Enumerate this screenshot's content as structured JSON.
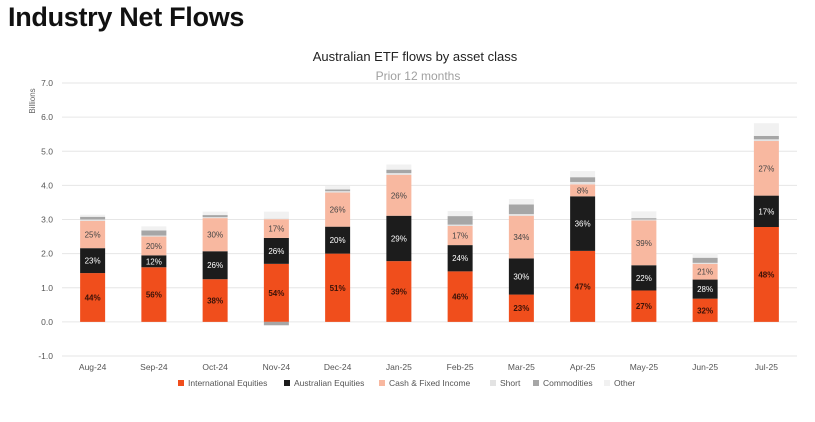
{
  "page": {
    "title": "Industry Net Flows"
  },
  "chart_data": {
    "type": "stacked bar",
    "title": "Australian ETF flows by asset class",
    "subtitle": "Prior 12 months",
    "ylabel": "Billions",
    "xlabel": "",
    "ylim": [
      -1.0,
      7.0
    ],
    "yticks": [
      "-1.0",
      "0.0",
      "1.0",
      "2.0",
      "3.0",
      "4.0",
      "5.0",
      "6.0",
      "7.0"
    ],
    "grid": true,
    "legend_position": "bottom",
    "categories": [
      "Aug-24",
      "Sep-24",
      "Oct-24",
      "Nov-24",
      "Dec-24",
      "Jan-25",
      "Feb-25",
      "Mar-25",
      "Apr-25",
      "May-25",
      "Jun-25",
      "Jul-25"
    ],
    "series": [
      {
        "name": "International Equities",
        "color": "#F04E1C",
        "label_color": "#3a1208",
        "values": [
          1.43,
          1.6,
          1.25,
          1.7,
          2.0,
          1.78,
          1.48,
          0.8,
          2.08,
          0.92,
          0.68,
          2.78
        ],
        "labels": [
          "44%",
          "56%",
          "38%",
          "54%",
          "51%",
          "39%",
          "46%",
          "23%",
          "47%",
          "27%",
          "32%",
          "48%"
        ]
      },
      {
        "name": "Australian Equities",
        "color": "#1C1C1C",
        "label_color": "#ffffff",
        "values": [
          0.73,
          0.35,
          0.82,
          0.76,
          0.79,
          1.33,
          0.77,
          1.06,
          1.6,
          0.74,
          0.56,
          0.92
        ],
        "labels": [
          "23%",
          "12%",
          "26%",
          "26%",
          "20%",
          "29%",
          "24%",
          "30%",
          "36%",
          "22%",
          "28%",
          "17%"
        ]
      },
      {
        "name": "Cash & Fixed Income",
        "color": "#F8B8A0",
        "label_color": "#444444",
        "values": [
          0.8,
          0.55,
          0.97,
          0.55,
          1.0,
          1.2,
          0.56,
          1.25,
          0.35,
          1.31,
          0.46,
          1.6
        ],
        "labels": [
          "25%",
          "20%",
          "30%",
          "17%",
          "26%",
          "26%",
          "17%",
          "34%",
          "8%",
          "39%",
          "21%",
          "27%"
        ]
      },
      {
        "name": "Short",
        "color": "#E3E3E3",
        "label_color": "#444444",
        "values": [
          0.04,
          0.03,
          0.03,
          0.02,
          0.04,
          0.05,
          0.04,
          0.05,
          0.07,
          0.03,
          0.03,
          0.05
        ],
        "labels": [
          "",
          "",
          "",
          "",
          "",
          "",
          "",
          "",
          "",
          "",
          "",
          ""
        ]
      },
      {
        "name": "Commodities",
        "color": "#A6A6A6",
        "label_color": "#444444",
        "values": [
          0.08,
          0.15,
          0.06,
          -0.1,
          0.05,
          0.1,
          0.25,
          0.28,
          0.14,
          0.04,
          0.15,
          0.1
        ],
        "labels": [
          "",
          "",
          "",
          "",
          "",
          "",
          "",
          "",
          "",
          "",
          "",
          ""
        ]
      },
      {
        "name": "Other",
        "color": "#F1F1F1",
        "label_color": "#444444",
        "values": [
          0.06,
          0.12,
          0.1,
          0.2,
          0.1,
          0.15,
          0.15,
          0.16,
          0.18,
          0.2,
          0.14,
          0.37
        ],
        "labels": [
          "",
          "",
          "",
          "",
          "",
          "",
          "",
          "",
          "",
          "",
          "",
          ""
        ]
      }
    ]
  }
}
